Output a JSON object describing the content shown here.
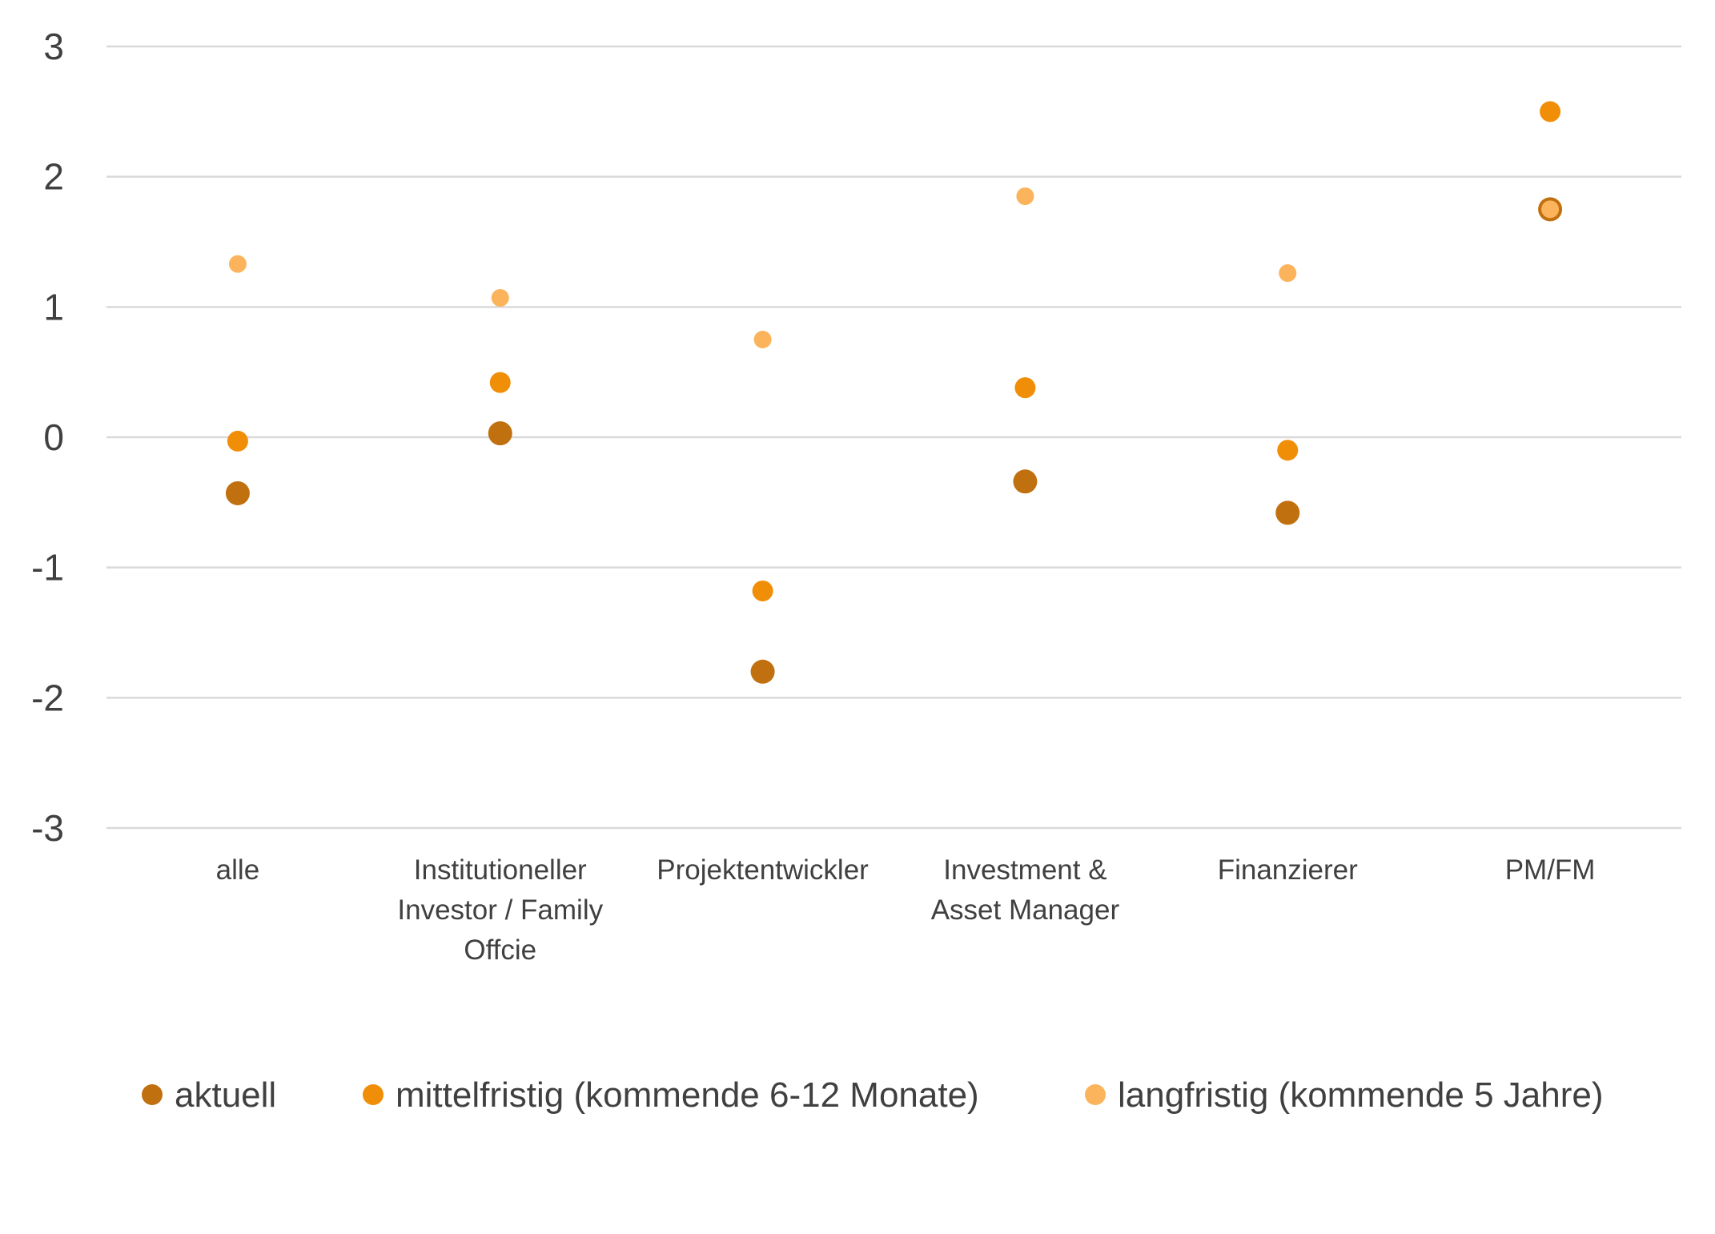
{
  "chart_data": {
    "type": "scatter",
    "title": "",
    "xlabel": "",
    "ylabel": "",
    "ylim": [
      -3,
      3
    ],
    "yticks": [
      "3",
      "2",
      "1",
      "0",
      "-1",
      "-2",
      "-3"
    ],
    "grid": true,
    "legend_position": "bottom",
    "categories": [
      [
        "alle"
      ],
      [
        "Institutioneller",
        "Investor / Family",
        "Offcie"
      ],
      [
        "Projektentwickler"
      ],
      [
        "Investment &",
        "Asset Manager"
      ],
      [
        "Finanzierer"
      ],
      [
        "PM/FM"
      ]
    ],
    "series": [
      {
        "name": "aktuell",
        "color": "#C0700E",
        "values": [
          -0.43,
          0.03,
          -1.8,
          -0.34,
          -0.58,
          1.75
        ]
      },
      {
        "name": "mittelfristig (kommende 6-12 Monate)",
        "color": "#F18E07",
        "values": [
          -0.03,
          0.42,
          -1.18,
          0.38,
          -0.1,
          2.5
        ]
      },
      {
        "name": "langfristig (kommende 5 Jahre)",
        "color": "#FBB45C",
        "values": [
          1.33,
          1.07,
          0.75,
          1.85,
          1.26,
          1.75
        ]
      }
    ]
  }
}
